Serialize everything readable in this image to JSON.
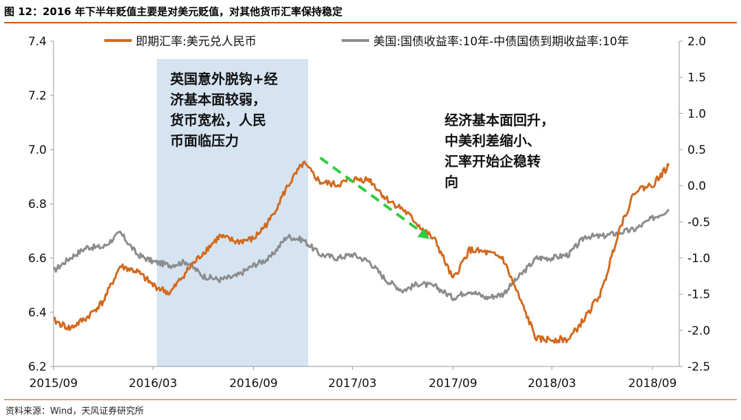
{
  "figure": {
    "title": "图 12：2016 年下半年贬值主要是对美元贬值，对其他货币汇率保持稳定",
    "source": "资料来源：Wind，天风证券研究所"
  },
  "chart_data": {
    "type": "line",
    "x_ticks": [
      "2015/09",
      "2016/03",
      "2016/09",
      "2017/03",
      "2017/09",
      "2018/03",
      "2018/09"
    ],
    "y_left": {
      "range": [
        6.2,
        7.4
      ],
      "ticks": [
        "6.2",
        "6.4",
        "6.6",
        "6.8",
        "7.0",
        "7.2",
        "7.4"
      ]
    },
    "y_right": {
      "range": [
        -2.5,
        2.0
      ],
      "ticks": [
        "-2.5",
        "-2.0",
        "-1.5",
        "-1.0",
        "-0.5",
        "0.0",
        "0.5",
        "1.0",
        "1.5",
        "2.0"
      ]
    },
    "series": [
      {
        "name": "即期汇率:美元兑人民币",
        "axis": "left",
        "color": "#d2691e",
        "points": [
          [
            "2015-09-01",
            6.37
          ],
          [
            "2015-10-01",
            6.34
          ],
          [
            "2015-11-01",
            6.38
          ],
          [
            "2015-12-01",
            6.44
          ],
          [
            "2016-01-01",
            6.57
          ],
          [
            "2016-02-01",
            6.55
          ],
          [
            "2016-03-01",
            6.5
          ],
          [
            "2016-04-01",
            6.47
          ],
          [
            "2016-05-01",
            6.55
          ],
          [
            "2016-06-01",
            6.62
          ],
          [
            "2016-07-01",
            6.68
          ],
          [
            "2016-08-01",
            6.66
          ],
          [
            "2016-09-01",
            6.67
          ],
          [
            "2016-10-01",
            6.74
          ],
          [
            "2016-11-01",
            6.86
          ],
          [
            "2016-12-01",
            6.95
          ],
          [
            "2017-01-01",
            6.88
          ],
          [
            "2017-02-01",
            6.87
          ],
          [
            "2017-03-01",
            6.89
          ],
          [
            "2017-04-01",
            6.89
          ],
          [
            "2017-05-01",
            6.82
          ],
          [
            "2017-06-01",
            6.78
          ],
          [
            "2017-07-01",
            6.72
          ],
          [
            "2017-08-01",
            6.66
          ],
          [
            "2017-09-01",
            6.52
          ],
          [
            "2017-10-01",
            6.63
          ],
          [
            "2017-11-01",
            6.62
          ],
          [
            "2017-12-01",
            6.6
          ],
          [
            "2018-01-01",
            6.45
          ],
          [
            "2018-02-01",
            6.3
          ],
          [
            "2018-03-01",
            6.3
          ],
          [
            "2018-04-01",
            6.3
          ],
          [
            "2018-05-01",
            6.38
          ],
          [
            "2018-06-01",
            6.48
          ],
          [
            "2018-07-01",
            6.7
          ],
          [
            "2018-08-01",
            6.85
          ],
          [
            "2018-09-01",
            6.87
          ],
          [
            "2018-10-01",
            6.94
          ]
        ]
      },
      {
        "name": "美国:国债收益率:10年-中债国债到期收益率:10年",
        "axis": "right",
        "color": "#8c8c8c",
        "points": [
          [
            "2015-09-01",
            -1.18
          ],
          [
            "2015-10-01",
            -1.0
          ],
          [
            "2015-11-01",
            -0.85
          ],
          [
            "2015-12-01",
            -0.85
          ],
          [
            "2016-01-01",
            -0.65
          ],
          [
            "2016-02-01",
            -0.95
          ],
          [
            "2016-03-01",
            -1.05
          ],
          [
            "2016-04-01",
            -1.1
          ],
          [
            "2016-05-01",
            -1.05
          ],
          [
            "2016-06-01",
            -1.25
          ],
          [
            "2016-07-01",
            -1.3
          ],
          [
            "2016-08-01",
            -1.25
          ],
          [
            "2016-09-01",
            -1.1
          ],
          [
            "2016-10-01",
            -1.0
          ],
          [
            "2016-11-01",
            -0.7
          ],
          [
            "2016-12-01",
            -0.75
          ],
          [
            "2017-01-01",
            -0.95
          ],
          [
            "2017-02-01",
            -1.0
          ],
          [
            "2017-03-01",
            -0.95
          ],
          [
            "2017-04-01",
            -1.05
          ],
          [
            "2017-05-01",
            -1.3
          ],
          [
            "2017-06-01",
            -1.45
          ],
          [
            "2017-07-01",
            -1.35
          ],
          [
            "2017-08-01",
            -1.4
          ],
          [
            "2017-09-01",
            -1.55
          ],
          [
            "2017-10-01",
            -1.45
          ],
          [
            "2017-11-01",
            -1.55
          ],
          [
            "2017-12-01",
            -1.5
          ],
          [
            "2018-01-01",
            -1.25
          ],
          [
            "2018-02-01",
            -1.0
          ],
          [
            "2018-03-01",
            -1.0
          ],
          [
            "2018-04-01",
            -0.95
          ],
          [
            "2018-05-01",
            -0.7
          ],
          [
            "2018-06-01",
            -0.7
          ],
          [
            "2018-07-01",
            -0.65
          ],
          [
            "2018-08-01",
            -0.6
          ],
          [
            "2018-09-01",
            -0.45
          ],
          [
            "2018-10-01",
            -0.33
          ]
        ]
      }
    ],
    "shaded_period": [
      "2016-03-08",
      "2016-12-10"
    ],
    "annotations": {
      "shaded": "英国意外脱钩+经\n济基本面较弱，\n货币宽松，人民\n币面临压力",
      "arrow": "经济基本面回升，\n中美利差缩小、\n汇率开始企稳转\n向"
    },
    "trend_arrow": {
      "from": [
        "2017-01-01",
        6.97
      ],
      "to": [
        "2017-07-20",
        6.67
      ],
      "color": "#2ecc40"
    }
  }
}
